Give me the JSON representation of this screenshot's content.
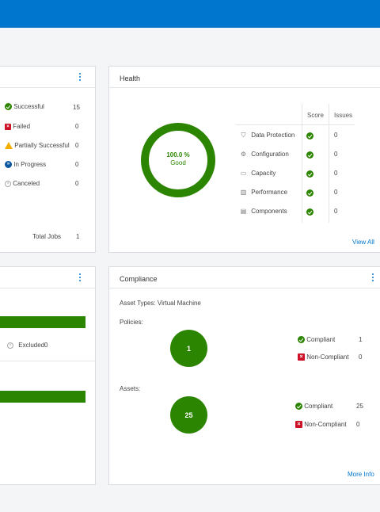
{
  "colors": {
    "brand": "#0076ce",
    "success": "#2c8500",
    "failed": "#ce1126",
    "warning": "#f2af00",
    "inprogress": "#0a57a0"
  },
  "jobs": {
    "items": [
      {
        "label": "Successful",
        "value": "15",
        "icon": "success-icon"
      },
      {
        "label": "Failed",
        "value": "0",
        "icon": "failed-icon"
      },
      {
        "label": "Partially Successful",
        "value": "0",
        "icon": "warning-icon"
      },
      {
        "label": "In Progress",
        "value": "0",
        "icon": "in-progress-icon"
      },
      {
        "label": "Canceled",
        "value": "0",
        "icon": "canceled-icon"
      }
    ],
    "total_label": "Total Jobs",
    "total_value": "1"
  },
  "health": {
    "title": "Health",
    "score_percent": "100.0 %",
    "score_status": "Good",
    "ring_fraction": 1.0,
    "col_score": "Score",
    "col_issues": "Issues",
    "rows": [
      {
        "label": "Data Protection",
        "icon": "shield-icon",
        "issues": "0"
      },
      {
        "label": "Configuration",
        "icon": "gear-icon",
        "issues": "0"
      },
      {
        "label": "Capacity",
        "icon": "capacity-icon",
        "issues": "0"
      },
      {
        "label": "Performance",
        "icon": "bar-chart-icon",
        "issues": "0"
      },
      {
        "label": "Components",
        "icon": "components-icon",
        "issues": "0"
      }
    ],
    "view_all": "View All"
  },
  "activity": {
    "excluded_label": "Excluded",
    "excluded_value": "0"
  },
  "compliance": {
    "title": "Compliance",
    "asset_types": "Asset Types: Virtual Machine",
    "policies_label": "Policies:",
    "policies_total": "1",
    "policies_compliant_label": "Compliant",
    "policies_compliant_value": "1",
    "policies_noncompliant_label": "Non-Compliant",
    "policies_noncompliant_value": "0",
    "assets_label": "Assets:",
    "assets_total": "25",
    "assets_compliant_label": "Compliant",
    "assets_compliant_value": "25",
    "assets_noncompliant_label": "Non-Compliant",
    "assets_noncompliant_value": "0",
    "more_info": "More Info"
  }
}
